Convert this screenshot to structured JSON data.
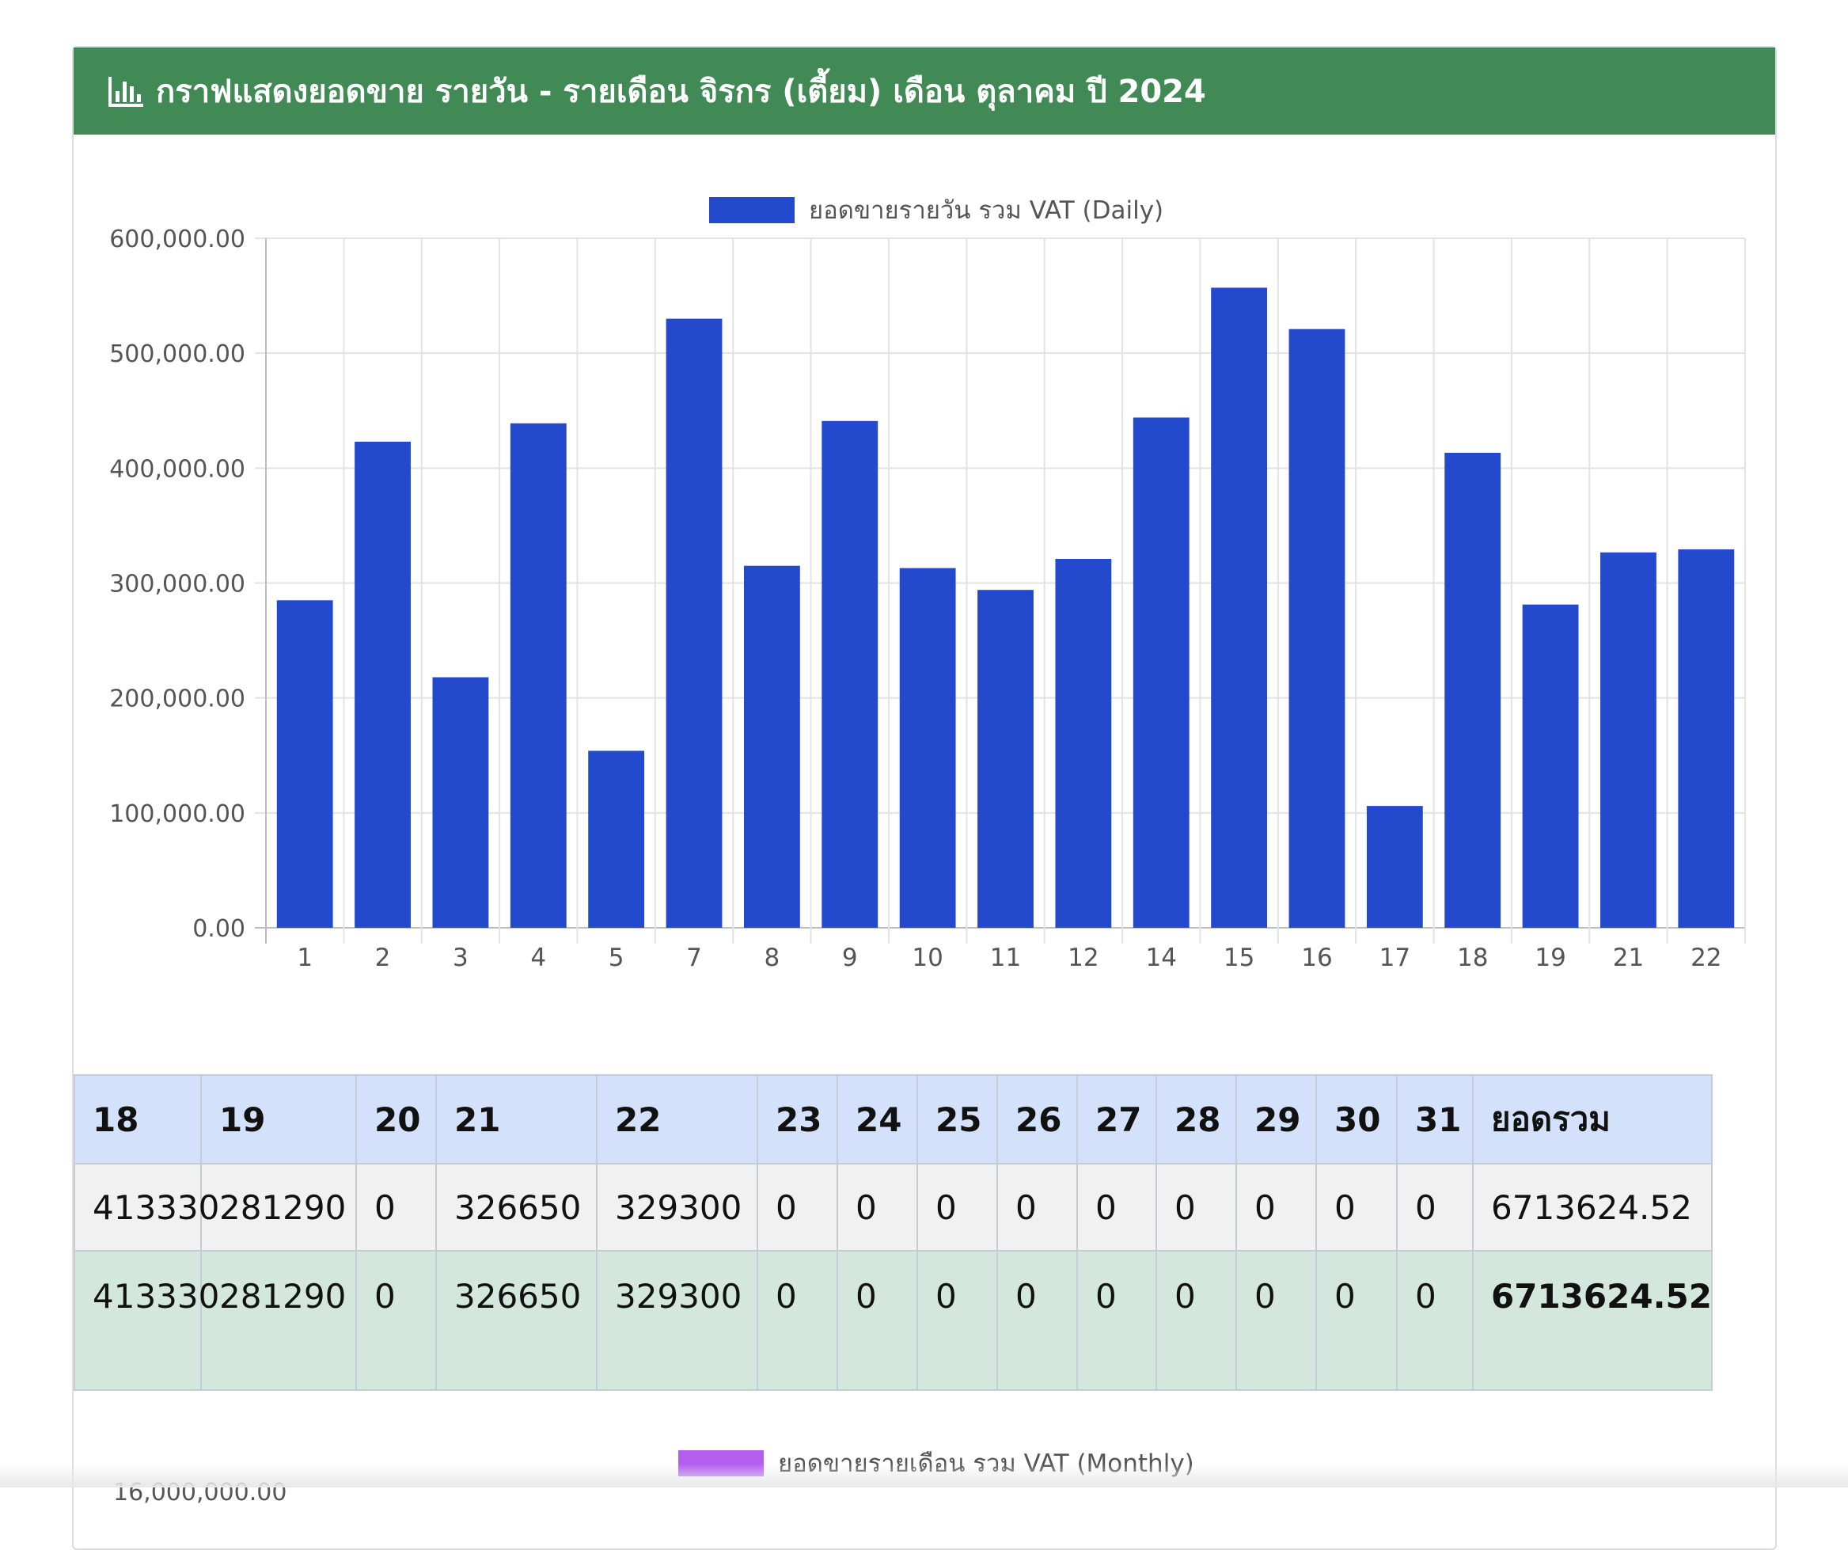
{
  "header": {
    "title": "กราฟแสดงยอดขาย รายวัน - รายเดือน จิรกร (เตี้ยม) เดือน ตุลาคม ปี 2024",
    "icon": "bar-chart-icon"
  },
  "colors": {
    "header_bg": "#418a55",
    "daily_bar": "#2349cc",
    "monthly_swatch": "#b45ef0",
    "table_head": "#d3e1fb",
    "row_alt": "#f1f1f1",
    "row_total": "#d4e7dd"
  },
  "chart_data": {
    "type": "bar",
    "categories": [
      "1",
      "2",
      "3",
      "4",
      "5",
      "7",
      "8",
      "9",
      "10",
      "11",
      "12",
      "14",
      "15",
      "16",
      "17",
      "18",
      "19",
      "21",
      "22"
    ],
    "series": [
      {
        "name": "ยอดขายรายวัน รวม VAT (Daily)",
        "values": [
          285000,
          423000,
          218000,
          439000,
          154000,
          530000,
          315000,
          441000,
          313000,
          294000,
          321000,
          444000,
          557000,
          521000,
          106000,
          413330,
          281290,
          326650,
          329300
        ]
      }
    ],
    "ylim": [
      0,
      600000
    ],
    "yticks": [
      "0.00",
      "100,000.00",
      "200,000.00",
      "300,000.00",
      "400,000.00",
      "500,000.00",
      "600,000.00"
    ],
    "grid": true,
    "legend": "top"
  },
  "monthly_legend": "ยอดขายรายเดือน รวม VAT (Monthly)",
  "monthly_ytick_partial": "16,000,000.00",
  "table": {
    "headers": [
      "18",
      "19",
      "20",
      "21",
      "22",
      "23",
      "24",
      "25",
      "26",
      "27",
      "28",
      "29",
      "30",
      "31",
      "ยอดรวม"
    ],
    "rows": [
      [
        "413330",
        "281290",
        "0",
        "326650",
        "329300",
        "0",
        "0",
        "0",
        "0",
        "0",
        "0",
        "0",
        "0",
        "0",
        "6713624.52"
      ],
      [
        "413330",
        "281290",
        "0",
        "326650",
        "329300",
        "0",
        "0",
        "0",
        "0",
        "0",
        "0",
        "0",
        "0",
        "0",
        "6713624.52"
      ]
    ]
  }
}
